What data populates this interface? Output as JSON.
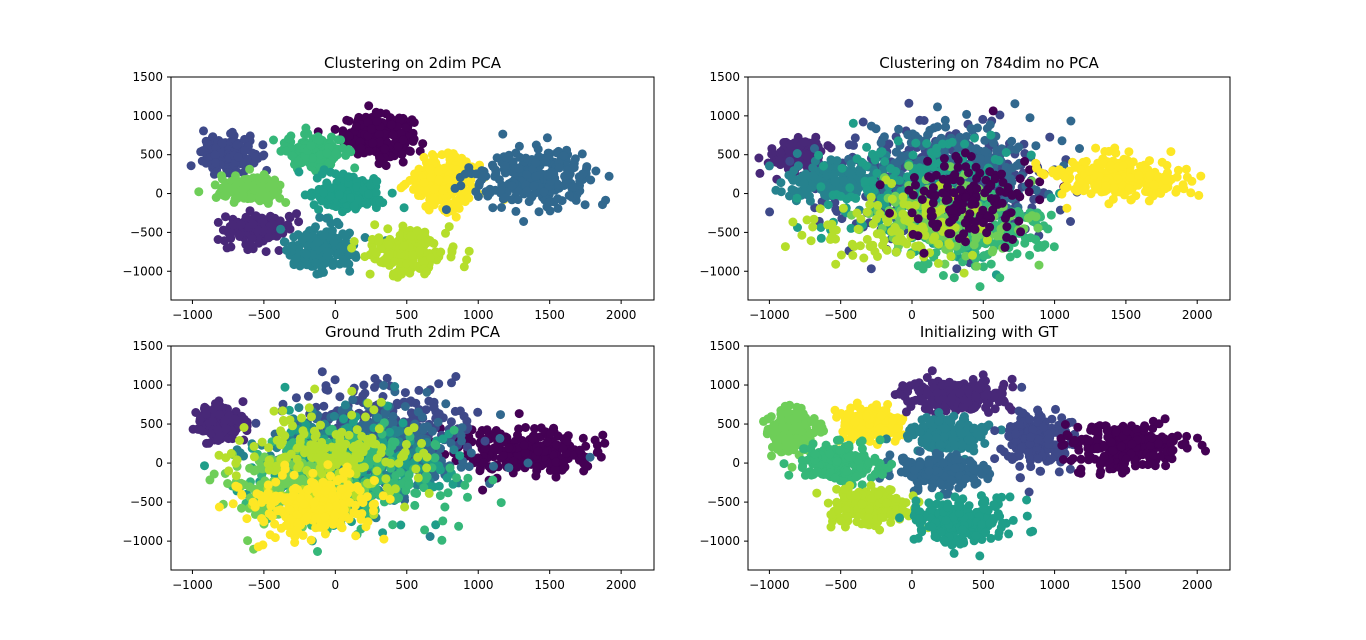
{
  "chart_data": [
    {
      "type": "scatter",
      "title": "Clustering on 2dim PCA",
      "xlim": [
        -1150,
        2230
      ],
      "ylim": [
        -1370,
        1500
      ],
      "xticks": [
        -1000,
        -500,
        0,
        500,
        1000,
        1500,
        2000
      ],
      "yticks": [
        -1000,
        -500,
        0,
        500,
        1000,
        1500
      ],
      "colors": [
        "#440154",
        "#482878",
        "#3e4989",
        "#31688e",
        "#26828e",
        "#1f9e89",
        "#35b779",
        "#6ece58",
        "#b5de2b",
        "#fde725"
      ],
      "clusters": [
        {
          "color": "#440154",
          "cx": 300,
          "cy": 750,
          "sx": 160,
          "sy": 170,
          "n": 260
        },
        {
          "color": "#3e4989",
          "cx": -750,
          "cy": 500,
          "sx": 120,
          "sy": 150,
          "n": 200
        },
        {
          "color": "#35b779",
          "cx": -150,
          "cy": 550,
          "sx": 130,
          "sy": 140,
          "n": 200
        },
        {
          "color": "#6ece58",
          "cx": -600,
          "cy": 50,
          "sx": 150,
          "sy": 110,
          "n": 180
        },
        {
          "color": "#1f9e89",
          "cx": 100,
          "cy": 0,
          "sx": 150,
          "sy": 140,
          "n": 200
        },
        {
          "color": "#fde725",
          "cx": 750,
          "cy": 150,
          "sx": 160,
          "sy": 220,
          "n": 240
        },
        {
          "color": "#31688e",
          "cx": 1400,
          "cy": 200,
          "sx": 280,
          "sy": 230,
          "n": 260
        },
        {
          "color": "#482878",
          "cx": -550,
          "cy": -450,
          "sx": 150,
          "sy": 130,
          "n": 180
        },
        {
          "color": "#26828e",
          "cx": -100,
          "cy": -700,
          "sx": 160,
          "sy": 180,
          "n": 200
        },
        {
          "color": "#b5de2b",
          "cx": 500,
          "cy": -750,
          "sx": 170,
          "sy": 190,
          "n": 220
        }
      ]
    },
    {
      "type": "scatter",
      "title": "Clustering on 784dim no PCA",
      "xlim": [
        -1150,
        2230
      ],
      "ylim": [
        -1370,
        1500
      ],
      "xticks": [
        -1000,
        -500,
        0,
        500,
        1000,
        1500,
        2000
      ],
      "yticks": [
        -1000,
        -500,
        0,
        500,
        1000,
        1500
      ],
      "colors": [
        "#440154",
        "#482878",
        "#3e4989",
        "#31688e",
        "#26828e",
        "#1f9e89",
        "#35b779",
        "#6ece58",
        "#b5de2b",
        "#fde725"
      ],
      "clusters": [
        {
          "color": "#482878",
          "cx": -800,
          "cy": 500,
          "sx": 110,
          "sy": 140,
          "n": 160
        },
        {
          "color": "#3e4989",
          "cx": 150,
          "cy": 100,
          "sx": 500,
          "sy": 450,
          "n": 420
        },
        {
          "color": "#31688e",
          "cx": 300,
          "cy": 300,
          "sx": 400,
          "sy": 400,
          "n": 300
        },
        {
          "color": "#26828e",
          "cx": -550,
          "cy": 150,
          "sx": 250,
          "sy": 180,
          "n": 160
        },
        {
          "color": "#1f9e89",
          "cx": 100,
          "cy": 0,
          "sx": 450,
          "sy": 450,
          "n": 260
        },
        {
          "color": "#35b779",
          "cx": 400,
          "cy": -500,
          "sx": 350,
          "sy": 300,
          "n": 200
        },
        {
          "color": "#6ece58",
          "cx": 200,
          "cy": -300,
          "sx": 400,
          "sy": 350,
          "n": 140
        },
        {
          "color": "#b5de2b",
          "cx": -100,
          "cy": -450,
          "sx": 400,
          "sy": 300,
          "n": 120
        },
        {
          "color": "#440154",
          "cx": 400,
          "cy": 0,
          "sx": 300,
          "sy": 350,
          "n": 150
        },
        {
          "color": "#fde725",
          "cx": 1450,
          "cy": 200,
          "sx": 300,
          "sy": 180,
          "n": 260
        }
      ]
    },
    {
      "type": "scatter",
      "title": "Ground Truth 2dim PCA",
      "xlim": [
        -1150,
        2230
      ],
      "ylim": [
        -1370,
        1500
      ],
      "xticks": [
        -1000,
        -500,
        0,
        500,
        1000,
        1500,
        2000
      ],
      "yticks": [
        -1000,
        -500,
        0,
        500,
        1000,
        1500
      ],
      "colors": [
        "#440154",
        "#482878",
        "#3e4989",
        "#31688e",
        "#26828e",
        "#1f9e89",
        "#35b779",
        "#6ece58",
        "#b5de2b",
        "#fde725"
      ],
      "clusters": [
        {
          "color": "#482878",
          "cx": -800,
          "cy": 500,
          "sx": 110,
          "sy": 150,
          "n": 180
        },
        {
          "color": "#440154",
          "cx": 1300,
          "cy": 150,
          "sx": 350,
          "sy": 200,
          "n": 280
        },
        {
          "color": "#3e4989",
          "cx": 300,
          "cy": 500,
          "sx": 400,
          "sy": 350,
          "n": 220
        },
        {
          "color": "#31688e",
          "cx": 400,
          "cy": 200,
          "sx": 450,
          "sy": 400,
          "n": 220
        },
        {
          "color": "#26828e",
          "cx": 0,
          "cy": 0,
          "sx": 400,
          "sy": 400,
          "n": 220
        },
        {
          "color": "#1f9e89",
          "cx": 100,
          "cy": -100,
          "sx": 450,
          "sy": 450,
          "n": 200
        },
        {
          "color": "#35b779",
          "cx": 200,
          "cy": -200,
          "sx": 450,
          "sy": 450,
          "n": 200
        },
        {
          "color": "#6ece58",
          "cx": -300,
          "cy": -350,
          "sx": 300,
          "sy": 300,
          "n": 180
        },
        {
          "color": "#b5de2b",
          "cx": 0,
          "cy": 100,
          "sx": 400,
          "sy": 400,
          "n": 200
        },
        {
          "color": "#fde725",
          "cx": -150,
          "cy": -550,
          "sx": 300,
          "sy": 280,
          "n": 220
        }
      ]
    },
    {
      "type": "scatter",
      "title": "Initializing with GT",
      "xlim": [
        -1150,
        2230
      ],
      "ylim": [
        -1370,
        1500
      ],
      "xticks": [
        -1000,
        -500,
        0,
        500,
        1000,
        1500,
        2000
      ],
      "yticks": [
        -1000,
        -500,
        0,
        500,
        1000,
        1500
      ],
      "colors": [
        "#440154",
        "#482878",
        "#3e4989",
        "#31688e",
        "#26828e",
        "#1f9e89",
        "#35b779",
        "#6ece58",
        "#b5de2b",
        "#fde725"
      ],
      "clusters": [
        {
          "color": "#6ece58",
          "cx": -850,
          "cy": 400,
          "sx": 110,
          "sy": 180,
          "n": 200
        },
        {
          "color": "#fde725",
          "cx": -300,
          "cy": 500,
          "sx": 130,
          "sy": 150,
          "n": 200
        },
        {
          "color": "#482878",
          "cx": 300,
          "cy": 850,
          "sx": 230,
          "sy": 140,
          "n": 220
        },
        {
          "color": "#26828e",
          "cx": 250,
          "cy": 350,
          "sx": 180,
          "sy": 150,
          "n": 200
        },
        {
          "color": "#3e4989",
          "cx": 850,
          "cy": 300,
          "sx": 160,
          "sy": 240,
          "n": 200
        },
        {
          "color": "#440154",
          "cx": 1500,
          "cy": 200,
          "sx": 270,
          "sy": 200,
          "n": 260
        },
        {
          "color": "#31688e",
          "cx": 200,
          "cy": -100,
          "sx": 220,
          "sy": 150,
          "n": 200
        },
        {
          "color": "#35b779",
          "cx": -500,
          "cy": 0,
          "sx": 190,
          "sy": 150,
          "n": 200
        },
        {
          "color": "#b5de2b",
          "cx": -300,
          "cy": -550,
          "sx": 190,
          "sy": 160,
          "n": 200
        },
        {
          "color": "#1f9e89",
          "cx": 350,
          "cy": -750,
          "sx": 220,
          "sy": 190,
          "n": 220
        }
      ]
    }
  ]
}
